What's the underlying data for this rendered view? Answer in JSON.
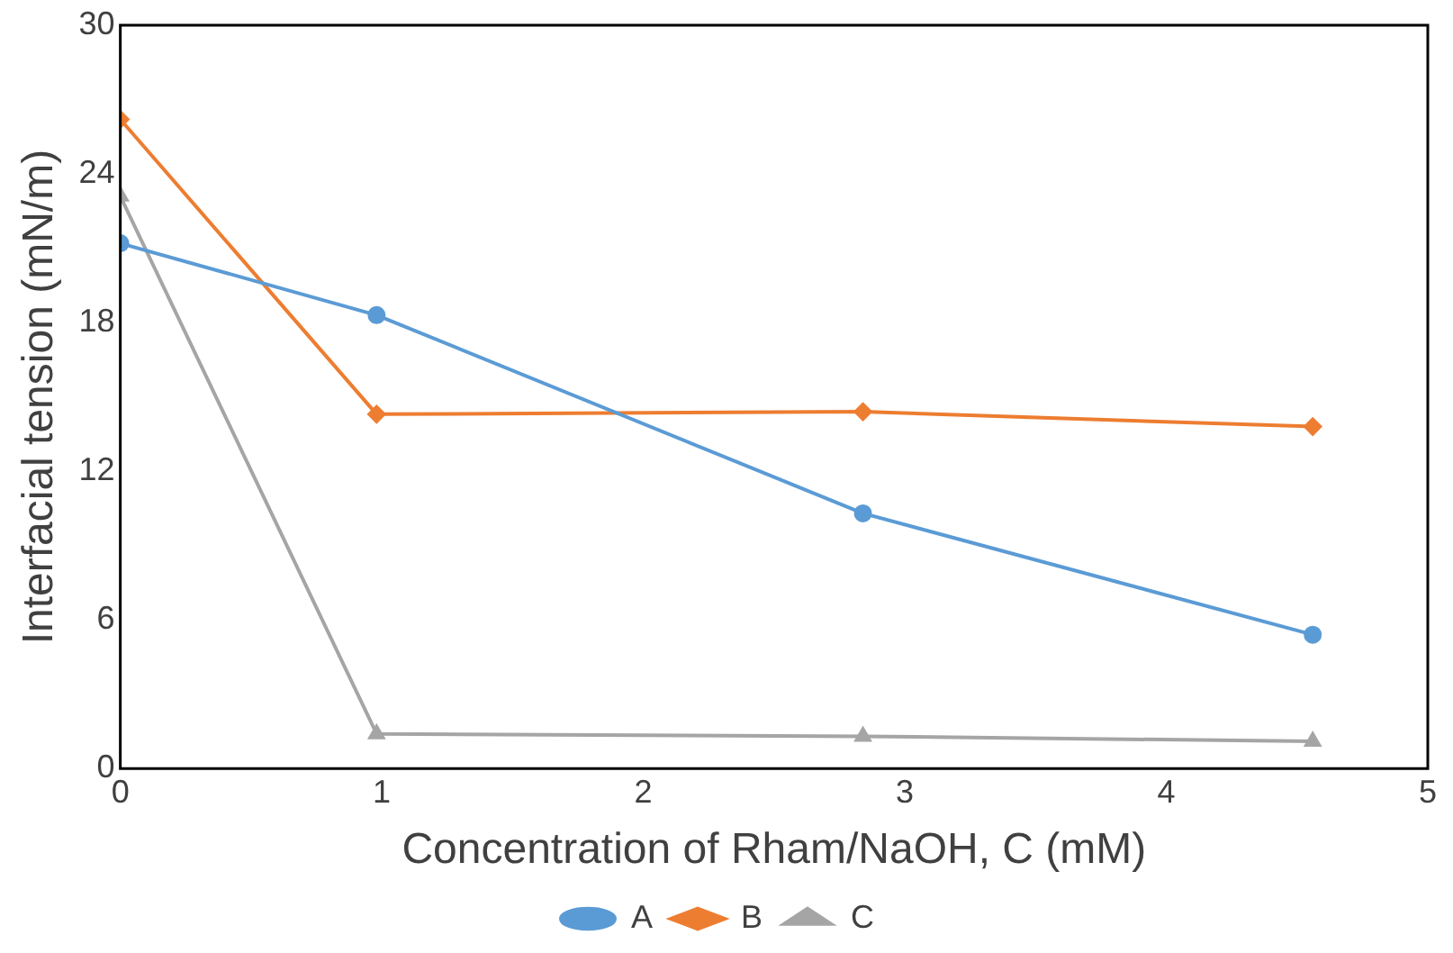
{
  "chart_data": {
    "type": "line",
    "xlabel": "Concentration of Rham/NaOH, C (mM)",
    "ylabel": "Interfacial tension (mN/m)",
    "xlim": [
      0,
      5
    ],
    "xticks": [
      0,
      1,
      2,
      3,
      4,
      5
    ],
    "ylim": [
      0,
      30
    ],
    "yticks": [
      0,
      6,
      12,
      18,
      24,
      30
    ],
    "grid": false,
    "legend": "bottom",
    "line_style": "solid",
    "series": [
      {
        "name": "A",
        "color": "#5b9bd5",
        "marker": "circle",
        "x": [
          0,
          0.98,
          2.84,
          4.56
        ],
        "values": [
          21.2,
          18.3,
          10.3,
          5.4
        ]
      },
      {
        "name": "B",
        "color": "#ed7d31",
        "marker": "diamond",
        "x": [
          0,
          0.98,
          2.84,
          4.56
        ],
        "values": [
          26.2,
          14.3,
          14.4,
          13.8
        ]
      },
      {
        "name": "C",
        "color": "#a5a5a5",
        "marker": "triangle",
        "x": [
          0,
          0.98,
          2.84,
          4.56
        ],
        "values": [
          23.1,
          1.4,
          1.3,
          1.1
        ]
      }
    ]
  }
}
